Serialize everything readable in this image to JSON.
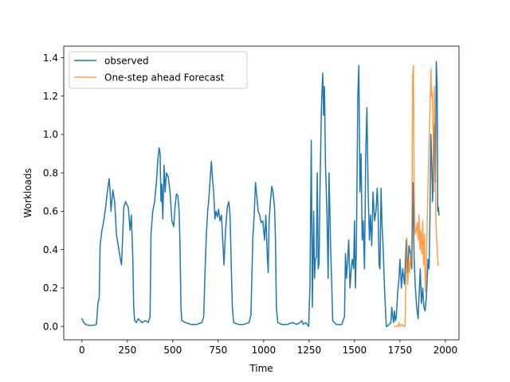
{
  "chart_data": {
    "type": "line",
    "title": "",
    "xlabel": "Time",
    "ylabel": "Workloads",
    "xlim": [
      -100,
      2075
    ],
    "ylim": [
      -0.07,
      1.46
    ],
    "xticks": [
      0,
      250,
      500,
      750,
      1000,
      1250,
      1500,
      1750,
      2000
    ],
    "yticks": [
      0.0,
      0.2,
      0.4,
      0.6,
      0.8,
      1.0,
      1.2,
      1.4
    ],
    "xtick_labels": [
      "0",
      "250",
      "500",
      "750",
      "1000",
      "1250",
      "1500",
      "1750",
      "2000"
    ],
    "ytick_labels": [
      "0.0",
      "0.2",
      "0.4",
      "0.6",
      "0.8",
      "1.0",
      "1.2",
      "1.4"
    ],
    "grid": false,
    "legend_position": "upper-left",
    "series": [
      {
        "name": "observed",
        "color": "#1f77b4",
        "points": [
          [
            0,
            0.04
          ],
          [
            10,
            0.02
          ],
          [
            20,
            0.01
          ],
          [
            40,
            0.005
          ],
          [
            60,
            0.005
          ],
          [
            80,
            0.01
          ],
          [
            88,
            0.12
          ],
          [
            95,
            0.15
          ],
          [
            100,
            0.42
          ],
          [
            110,
            0.5
          ],
          [
            120,
            0.55
          ],
          [
            130,
            0.62
          ],
          [
            140,
            0.7
          ],
          [
            150,
            0.77
          ],
          [
            155,
            0.7
          ],
          [
            160,
            0.6
          ],
          [
            170,
            0.71
          ],
          [
            180,
            0.65
          ],
          [
            190,
            0.48
          ],
          [
            200,
            0.42
          ],
          [
            210,
            0.36
          ],
          [
            218,
            0.32
          ],
          [
            225,
            0.48
          ],
          [
            230,
            0.62
          ],
          [
            240,
            0.65
          ],
          [
            255,
            0.62
          ],
          [
            265,
            0.5
          ],
          [
            272,
            0.58
          ],
          [
            280,
            0.35
          ],
          [
            285,
            0.1
          ],
          [
            290,
            0.03
          ],
          [
            300,
            0.02
          ],
          [
            310,
            0.04
          ],
          [
            330,
            0.02
          ],
          [
            350,
            0.03
          ],
          [
            365,
            0.02
          ],
          [
            375,
            0.05
          ],
          [
            380,
            0.48
          ],
          [
            390,
            0.6
          ],
          [
            400,
            0.65
          ],
          [
            410,
            0.75
          ],
          [
            418,
            0.87
          ],
          [
            425,
            0.93
          ],
          [
            430,
            0.9
          ],
          [
            435,
            0.65
          ],
          [
            440,
            0.74
          ],
          [
            445,
            0.56
          ],
          [
            452,
            0.84
          ],
          [
            458,
            0.7
          ],
          [
            465,
            0.8
          ],
          [
            475,
            0.78
          ],
          [
            485,
            0.7
          ],
          [
            495,
            0.55
          ],
          [
            505,
            0.52
          ],
          [
            512,
            0.62
          ],
          [
            520,
            0.69
          ],
          [
            528,
            0.68
          ],
          [
            535,
            0.6
          ],
          [
            540,
            0.42
          ],
          [
            545,
            0.1
          ],
          [
            550,
            0.03
          ],
          [
            570,
            0.02
          ],
          [
            600,
            0.01
          ],
          [
            630,
            0.01
          ],
          [
            660,
            0.02
          ],
          [
            670,
            0.05
          ],
          [
            678,
            0.3
          ],
          [
            685,
            0.48
          ],
          [
            692,
            0.6
          ],
          [
            698,
            0.66
          ],
          [
            705,
            0.76
          ],
          [
            712,
            0.86
          ],
          [
            718,
            0.78
          ],
          [
            725,
            0.7
          ],
          [
            732,
            0.56
          ],
          [
            738,
            0.6
          ],
          [
            745,
            0.57
          ],
          [
            752,
            0.61
          ],
          [
            760,
            0.55
          ],
          [
            768,
            0.58
          ],
          [
            775,
            0.45
          ],
          [
            782,
            0.32
          ],
          [
            790,
            0.5
          ],
          [
            800,
            0.62
          ],
          [
            808,
            0.65
          ],
          [
            815,
            0.58
          ],
          [
            822,
            0.3
          ],
          [
            828,
            0.1
          ],
          [
            835,
            0.02
          ],
          [
            860,
            0.01
          ],
          [
            890,
            0.01
          ],
          [
            920,
            0.02
          ],
          [
            930,
            0.06
          ],
          [
            940,
            0.45
          ],
          [
            948,
            0.58
          ],
          [
            955,
            0.75
          ],
          [
            962,
            0.68
          ],
          [
            970,
            0.6
          ],
          [
            978,
            0.58
          ],
          [
            986,
            0.54
          ],
          [
            995,
            0.55
          ],
          [
            1005,
            0.45
          ],
          [
            1012,
            0.58
          ],
          [
            1020,
            0.37
          ],
          [
            1025,
            0.28
          ],
          [
            1030,
            0.55
          ],
          [
            1038,
            0.66
          ],
          [
            1045,
            0.73
          ],
          [
            1052,
            0.7
          ],
          [
            1060,
            0.62
          ],
          [
            1065,
            0.45
          ],
          [
            1070,
            0.1
          ],
          [
            1078,
            0.02
          ],
          [
            1100,
            0.01
          ],
          [
            1130,
            0.01
          ],
          [
            1160,
            0.02
          ],
          [
            1180,
            0.01
          ],
          [
            1200,
            0.02
          ],
          [
            1210,
            0.03
          ],
          [
            1218,
            0.01
          ],
          [
            1230,
            0.02
          ],
          [
            1240,
            0.01
          ],
          [
            1248,
            0.0
          ],
          [
            1255,
            0.22
          ],
          [
            1262,
            0.97
          ],
          [
            1268,
            0.1
          ],
          [
            1275,
            0.6
          ],
          [
            1280,
            0.25
          ],
          [
            1285,
            0.35
          ],
          [
            1290,
            0.36
          ],
          [
            1295,
            0.8
          ],
          [
            1300,
            0.3
          ],
          [
            1305,
            0.33
          ],
          [
            1310,
            0.7
          ],
          [
            1318,
            1.15
          ],
          [
            1325,
            1.32
          ],
          [
            1330,
            1.1
          ],
          [
            1335,
            1.25
          ],
          [
            1340,
            0.85
          ],
          [
            1348,
            0.6
          ],
          [
            1355,
            0.25
          ],
          [
            1360,
            0.8
          ],
          [
            1368,
            0.43
          ],
          [
            1375,
            0.2
          ],
          [
            1380,
            0.03
          ],
          [
            1400,
            0.01
          ],
          [
            1430,
            0.01
          ],
          [
            1445,
            0.05
          ],
          [
            1450,
            0.38
          ],
          [
            1456,
            0.25
          ],
          [
            1462,
            0.34
          ],
          [
            1468,
            0.45
          ],
          [
            1475,
            0.2
          ],
          [
            1482,
            0.3
          ],
          [
            1488,
            0.35
          ],
          [
            1495,
            0.3
          ],
          [
            1500,
            0.55
          ],
          [
            1505,
            0.2
          ],
          [
            1510,
            0.4
          ],
          [
            1518,
            1.2
          ],
          [
            1524,
            1.36
          ],
          [
            1530,
            0.7
          ],
          [
            1536,
            0.9
          ],
          [
            1542,
            0.45
          ],
          [
            1548,
            0.55
          ],
          [
            1555,
            0.3
          ],
          [
            1562,
            0.9
          ],
          [
            1568,
            1.14
          ],
          [
            1575,
            0.7
          ],
          [
            1582,
            0.45
          ],
          [
            1588,
            0.58
          ],
          [
            1595,
            0.42
          ],
          [
            1602,
            0.7
          ],
          [
            1610,
            0.55
          ],
          [
            1618,
            0.6
          ],
          [
            1625,
            0.72
          ],
          [
            1630,
            0.6
          ],
          [
            1635,
            0.32
          ],
          [
            1640,
            0.3
          ],
          [
            1646,
            0.72
          ],
          [
            1652,
            0.52
          ],
          [
            1658,
            0.4
          ],
          [
            1665,
            0.2
          ],
          [
            1670,
            0.1
          ],
          [
            1675,
            0.0
          ],
          [
            1680,
            0.0
          ],
          [
            1690,
            0.01
          ],
          [
            1700,
            0.02
          ],
          [
            1705,
            0.1
          ],
          [
            1710,
            0.05
          ],
          [
            1715,
            0.02
          ],
          [
            1720,
            0.08
          ],
          [
            1725,
            0.03
          ],
          [
            1730,
            0.05
          ],
          [
            1738,
            0.18
          ],
          [
            1745,
            0.25
          ],
          [
            1750,
            0.35
          ],
          [
            1758,
            0.2
          ],
          [
            1765,
            0.3
          ],
          [
            1775,
            0.22
          ],
          [
            1785,
            0.45
          ],
          [
            1792,
            0.28
          ],
          [
            1800,
            0.42
          ],
          [
            1808,
            0.38
          ],
          [
            1815,
            0.3
          ],
          [
            1822,
            0.75
          ],
          [
            1828,
            0.35
          ],
          [
            1835,
            0.2
          ],
          [
            1842,
            0.1
          ],
          [
            1850,
            0.04
          ],
          [
            1855,
            0.15
          ],
          [
            1862,
            0.3
          ],
          [
            1868,
            0.12
          ],
          [
            1875,
            0.2
          ],
          [
            1882,
            0.1
          ],
          [
            1888,
            0.08
          ],
          [
            1895,
            0.15
          ],
          [
            1900,
            0.25
          ],
          [
            1905,
            0.35
          ],
          [
            1910,
            0.3
          ],
          [
            1915,
            0.55
          ],
          [
            1920,
            1.0
          ],
          [
            1925,
            0.85
          ],
          [
            1930,
            0.65
          ],
          [
            1935,
            0.9
          ],
          [
            1940,
            1.05
          ],
          [
            1945,
            0.75
          ],
          [
            1950,
            1.38
          ],
          [
            1955,
            1.25
          ],
          [
            1958,
            0.6
          ],
          [
            1962,
            0.62
          ],
          [
            1965,
            0.58
          ]
        ]
      },
      {
        "name": "One-step ahead Forecast",
        "color": "#ff7f0e",
        "points": [
          [
            1720,
            0.0
          ],
          [
            1730,
            0.0
          ],
          [
            1740,
            0.0
          ],
          [
            1745,
            0.02
          ],
          [
            1750,
            0.0
          ],
          [
            1760,
            0.01
          ],
          [
            1770,
            0.0
          ],
          [
            1778,
            0.0
          ],
          [
            1782,
            0.2
          ],
          [
            1788,
            0.46
          ],
          [
            1793,
            0.22
          ],
          [
            1798,
            0.35
          ],
          [
            1803,
            0.28
          ],
          [
            1808,
            0.36
          ],
          [
            1812,
            0.33
          ],
          [
            1816,
            0.5
          ],
          [
            1820,
            1.3
          ],
          [
            1824,
            1.36
          ],
          [
            1828,
            0.75
          ],
          [
            1832,
            0.52
          ],
          [
            1836,
            0.48
          ],
          [
            1840,
            0.5
          ],
          [
            1845,
            0.54
          ],
          [
            1850,
            0.45
          ],
          [
            1855,
            0.58
          ],
          [
            1860,
            0.4
          ],
          [
            1865,
            0.5
          ],
          [
            1870,
            0.38
          ],
          [
            1875,
            0.55
          ],
          [
            1880,
            0.32
          ],
          [
            1885,
            0.48
          ],
          [
            1890,
            0.18
          ],
          [
            1895,
            0.3
          ],
          [
            1900,
            0.55
          ],
          [
            1905,
            0.75
          ],
          [
            1910,
            0.95
          ],
          [
            1915,
            1.1
          ],
          [
            1920,
            1.34
          ],
          [
            1924,
            1.2
          ],
          [
            1928,
            1.22
          ],
          [
            1932,
            1.05
          ],
          [
            1936,
            0.7
          ],
          [
            1940,
            1.25
          ],
          [
            1944,
            0.85
          ],
          [
            1948,
            0.55
          ],
          [
            1952,
            0.45
          ],
          [
            1956,
            0.38
          ],
          [
            1960,
            0.32
          ]
        ]
      }
    ]
  }
}
